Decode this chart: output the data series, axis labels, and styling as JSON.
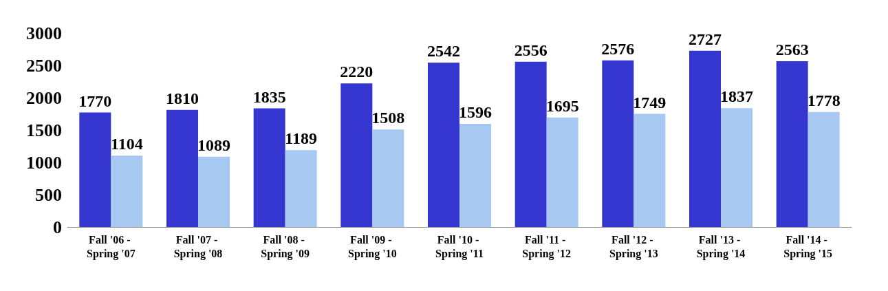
{
  "chart_data": {
    "type": "bar",
    "categories": [
      "Fall '06 - Spring '07",
      "Fall '07 - Spring '08",
      "Fall '08 - Spring '09",
      "Fall '09 - Spring '10",
      "Fall '10 - Spring '11",
      "Fall '11 - Spring '12",
      "Fall '12 - Spring '13",
      "Fall '13 - Spring '14",
      "Fall '14 - Spring '15"
    ],
    "series": [
      {
        "color": "#3535cf",
        "values": [
          1770,
          1810,
          1835,
          2220,
          2542,
          2556,
          2576,
          2727,
          2563
        ]
      },
      {
        "color": "#a7c8f0",
        "values": [
          1104,
          1089,
          1189,
          1508,
          1596,
          1695,
          1749,
          1837,
          1778
        ]
      }
    ],
    "ylim": [
      0,
      3000
    ],
    "yticks": [
      0,
      500,
      1000,
      1500,
      2000,
      2500,
      3000
    ],
    "data_labels": true
  }
}
